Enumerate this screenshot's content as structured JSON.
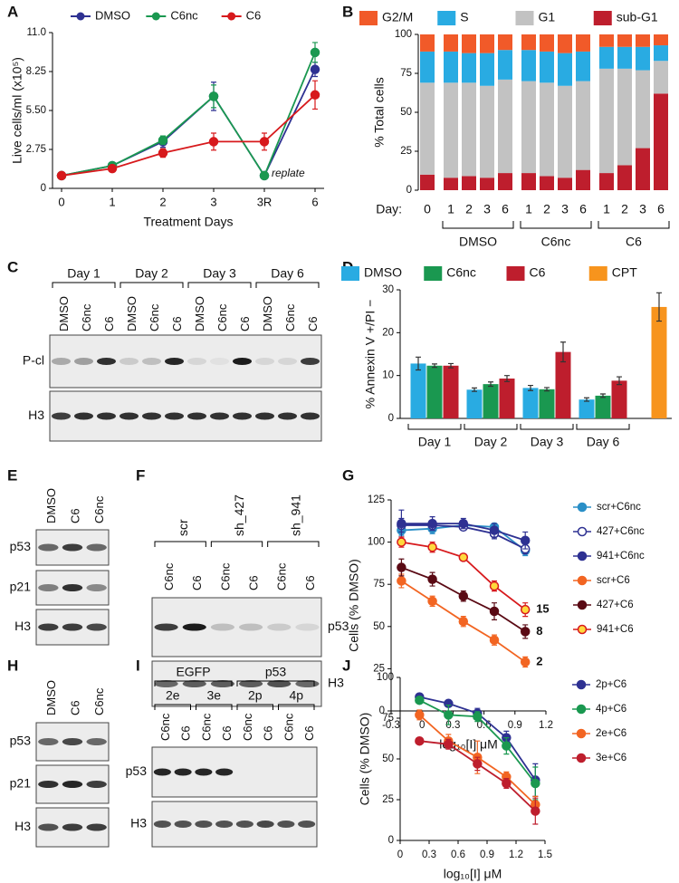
{
  "chart_data": [
    {
      "panel": "A",
      "type": "line",
      "y_label": "Live cells/ml (x10⁵)",
      "x_label": "Treatment Days",
      "categories": [
        "0",
        "1",
        "2",
        "3",
        "3R",
        "6"
      ],
      "ylim": [
        0,
        11
      ],
      "yticks": [
        0,
        2.75,
        {
          "value": 5.5,
          "label": "5.50"
        },
        8.25,
        {
          "value": 11,
          "label": "11.0"
        }
      ],
      "legend": "top",
      "annotation": "replate",
      "series": [
        {
          "name": "DMSO",
          "color": "#2e3192",
          "values": [
            0.9,
            1.6,
            3.3,
            6.5,
            0.9,
            8.4
          ],
          "errors": [
            0.1,
            0.15,
            0.4,
            1.0,
            0.1,
            0.5
          ]
        },
        {
          "name": "C6nc",
          "color": "#1a9850",
          "values": [
            0.9,
            1.6,
            3.4,
            6.5,
            0.9,
            9.6
          ],
          "errors": [
            0.1,
            0.15,
            0.3,
            0.8,
            0.1,
            0.7
          ]
        },
        {
          "name": "C6",
          "color": "#d7191c",
          "values": [
            0.9,
            1.4,
            2.5,
            3.3,
            3.3,
            6.6
          ],
          "errors": [
            0.1,
            0.1,
            0.3,
            0.6,
            0.6,
            1.0
          ]
        }
      ]
    },
    {
      "panel": "B",
      "type": "stacked_bar",
      "y_label": "% Total cells",
      "x_label": "Day:",
      "categories": [
        "0",
        "1",
        "2",
        "3",
        "6",
        "1",
        "2",
        "3",
        "6",
        "1",
        "2",
        "3",
        "6"
      ],
      "group_labels": [
        "DMSO",
        "C6nc",
        "C6"
      ],
      "ylim": [
        0,
        100
      ],
      "yticks": [
        0,
        25,
        50,
        75,
        100
      ],
      "legend": "top",
      "series": [
        {
          "name": "G2/M",
          "color": "#f15a29",
          "values": [
            11,
            11,
            12,
            12,
            10,
            10,
            11,
            12,
            11,
            8,
            8,
            8,
            7
          ]
        },
        {
          "name": "S",
          "color": "#29abe2",
          "values": [
            20,
            20,
            19,
            21,
            19,
            20,
            20,
            21,
            19,
            14,
            14,
            15,
            10
          ]
        },
        {
          "name": "G1",
          "color": "#c2c2c2",
          "values": [
            59,
            61,
            60,
            59,
            60,
            59,
            60,
            59,
            57,
            67,
            62,
            50,
            21
          ]
        },
        {
          "name": "sub-G1",
          "color": "#be1e2d",
          "values": [
            10,
            8,
            9,
            8,
            11,
            11,
            9,
            8,
            13,
            11,
            16,
            27,
            62
          ]
        }
      ]
    },
    {
      "panel": "D",
      "type": "bar",
      "y_label": "% Annexin V +/PI −",
      "categories": [
        "Day 1",
        "Day 2",
        "Day 3",
        "Day 6",
        null
      ],
      "ylim": [
        0,
        30
      ],
      "yticks": [
        0,
        10,
        20,
        30
      ],
      "legend": "top",
      "series": [
        {
          "name": "DMSO",
          "color": "#29abe2",
          "values": [
            12.8,
            6.7,
            7.1,
            4.4,
            null
          ],
          "errors": [
            1.5,
            0.4,
            0.6,
            0.4,
            null
          ]
        },
        {
          "name": "C6nc",
          "color": "#1a9850",
          "values": [
            12.3,
            8.0,
            6.8,
            5.3,
            null
          ],
          "errors": [
            0.4,
            0.5,
            0.4,
            0.4,
            null
          ]
        },
        {
          "name": "C6",
          "color": "#be1e2d",
          "values": [
            12.3,
            9.3,
            15.5,
            8.8,
            null
          ],
          "errors": [
            0.5,
            0.7,
            2.3,
            0.9,
            null
          ]
        },
        {
          "name": "CPT",
          "color": "#f7941d",
          "values": [
            null,
            null,
            null,
            null,
            26
          ],
          "errors": [
            null,
            null,
            null,
            null,
            3.3
          ]
        }
      ]
    },
    {
      "panel": "G",
      "type": "line",
      "y_label": "Cells (% DMSO)",
      "x_label": "log₁₀[I] μM",
      "x": [
        -0.2,
        0.1,
        0.4,
        0.7,
        1.0
      ],
      "xlim": [
        -0.3,
        1.2
      ],
      "xticks": [
        -0.3,
        0,
        0.3,
        0.6,
        0.9,
        1.2
      ],
      "ylim": [
        0,
        125
      ],
      "yticks": [
        0,
        25,
        50,
        75,
        100,
        125
      ],
      "legend": "right",
      "series": [
        {
          "name": "scr+C6nc",
          "color": "#2a8fc7",
          "edgecolor": "#2a8fc7",
          "values": [
            107,
            108,
            110,
            109,
            95
          ],
          "errors": [
            3,
            3,
            2,
            2,
            3
          ]
        },
        {
          "name": "427+C6nc",
          "color": "#ffffff",
          "edgecolor": "#2e3192",
          "values": [
            110,
            110,
            109,
            105,
            96
          ],
          "errors": [
            4,
            3,
            2,
            3,
            3
          ]
        },
        {
          "name": "941+C6nc",
          "color": "#2e3192",
          "edgecolor": "#2e3192",
          "values": [
            111,
            111,
            111,
            107,
            101
          ],
          "errors": [
            8,
            4,
            3,
            4,
            5
          ]
        },
        {
          "name": "scr+C6",
          "color": "#f26522",
          "edgecolor": "#f26522",
          "values": [
            77,
            65,
            53,
            42,
            29
          ],
          "errors": [
            4,
            3,
            3,
            3,
            3
          ],
          "end_label": 2
        },
        {
          "name": "427+C6",
          "color": "#5a0a14",
          "edgecolor": "#5a0a14",
          "values": [
            85,
            78,
            68,
            59,
            47
          ],
          "errors": [
            5,
            4,
            3,
            5,
            4
          ],
          "end_label": 8
        },
        {
          "name": "941+C6",
          "color": "#ffd93d",
          "edgecolor": "#d7191c",
          "values": [
            100,
            97,
            91,
            74,
            60
          ],
          "errors": [
            3,
            3,
            2,
            3,
            4
          ],
          "end_label": 15
        }
      ]
    },
    {
      "panel": "J",
      "type": "line",
      "y_label": "Cells (% DMSO)",
      "x_label": "log₁₀[I] μM",
      "x": [
        0.2,
        0.5,
        0.8,
        1.1,
        1.4
      ],
      "xlim": [
        0,
        1.5
      ],
      "xticks": [
        0,
        0.3,
        0.6,
        0.9,
        1.2,
        1.5
      ],
      "ylim": [
        0,
        100
      ],
      "yticks": [
        0,
        25,
        50,
        75,
        100
      ],
      "legend": "right",
      "series": [
        {
          "name": "2p+C6",
          "color": "#2e3192",
          "edgecolor": "#2e3192",
          "values": [
            88,
            84,
            78,
            63,
            37
          ],
          "errors": [
            2,
            2,
            3,
            4,
            10
          ]
        },
        {
          "name": "4p+C6",
          "color": "#1a9850",
          "edgecolor": "#1a9850",
          "values": [
            86,
            77,
            76,
            58,
            35
          ],
          "errors": [
            2,
            6,
            3,
            5,
            10
          ]
        },
        {
          "name": "2e+C6",
          "color": "#f26522",
          "edgecolor": "#f26522",
          "values": [
            77,
            61,
            51,
            39,
            22
          ],
          "errors": [
            3,
            4,
            10,
            3,
            5
          ]
        },
        {
          "name": "3e+C6",
          "color": "#be1e2d",
          "edgecolor": "#be1e2d",
          "values": [
            61,
            59,
            47,
            35,
            18
          ],
          "errors": [
            2,
            3,
            4,
            3,
            8
          ]
        }
      ]
    }
  ],
  "blots": [
    {
      "panel": "C",
      "groups": [
        "Day 1",
        "Day 2",
        "Day 3",
        "Day 6"
      ],
      "lanes": [
        "DMSO",
        "C6nc",
        "C6",
        "DMSO",
        "C6nc",
        "C6",
        "DMSO",
        "C6nc",
        "C6",
        "DMSO",
        "C6nc",
        "C6"
      ],
      "rows": [
        "P-cl",
        "H3"
      ]
    },
    {
      "panel": "E",
      "lanes": [
        "DMSO",
        "C6",
        "C6nc"
      ],
      "rows": [
        "p53",
        "p21",
        "H3"
      ]
    },
    {
      "panel": "F",
      "groups": [
        "scr",
        "sh_427",
        "sh_941"
      ],
      "lanes": [
        "C6nc",
        "C6",
        "C6nc",
        "C6",
        "C6nc",
        "C6"
      ],
      "rows": [
        "p53",
        "H3"
      ]
    },
    {
      "panel": "H",
      "lanes": [
        "DMSO",
        "C6",
        "C6nc"
      ],
      "rows": [
        "p53",
        "p21",
        "H3"
      ]
    },
    {
      "panel": "I",
      "supergroups": [
        "EGFP",
        "p53"
      ],
      "groups": [
        "2e",
        "3e",
        "2p",
        "4p"
      ],
      "lanes": [
        "C6nc",
        "C6",
        "C6nc",
        "C6",
        "C6nc",
        "C6",
        "C6nc",
        "C6"
      ],
      "rows": [
        "p53",
        "H3"
      ]
    }
  ]
}
